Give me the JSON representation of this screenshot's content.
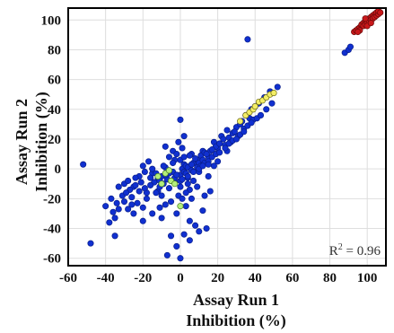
{
  "chart_data": {
    "type": "scatter",
    "title": "",
    "xlabel_lines": [
      "Assay Run 1",
      "Inhibition (%)"
    ],
    "ylabel_lines": [
      "Assay Run 2",
      "Inhibition (%)"
    ],
    "xlim": [
      -60,
      110
    ],
    "ylim": [
      -65,
      108
    ],
    "x_ticks": [
      -60,
      -40,
      -20,
      0,
      20,
      40,
      60,
      80,
      100
    ],
    "y_ticks": [
      -60,
      -40,
      -20,
      0,
      20,
      40,
      60,
      80,
      100
    ],
    "grid": true,
    "legend": "none",
    "annotation": {
      "text": "R",
      "sup": "2",
      "rest": " = 0.96",
      "placement": "bottom-right"
    },
    "series": [
      {
        "color": "#1030d0",
        "stroke": "#0a1e8a",
        "points": [
          [
            -52,
            3
          ],
          [
            -48,
            -50
          ],
          [
            -40,
            -25
          ],
          [
            -38,
            -36
          ],
          [
            -35,
            -33
          ],
          [
            -30,
            -10
          ],
          [
            -28,
            -8
          ],
          [
            -25,
            -12
          ],
          [
            -22,
            -5
          ],
          [
            -20,
            2
          ],
          [
            -18,
            -20
          ],
          [
            -15,
            -3
          ],
          [
            -12,
            -15
          ],
          [
            -10,
            -18
          ],
          [
            -8,
            1
          ],
          [
            -5,
            -22
          ],
          [
            -3,
            6
          ],
          [
            -2,
            -30
          ],
          [
            0,
            -8
          ],
          [
            2,
            3
          ],
          [
            4,
            -6
          ],
          [
            5,
            -14
          ],
          [
            6,
            10
          ],
          [
            8,
            5
          ],
          [
            10,
            -2
          ],
          [
            12,
            12
          ],
          [
            15,
            8
          ],
          [
            18,
            18
          ],
          [
            20,
            14
          ],
          [
            22,
            22
          ],
          [
            24,
            16
          ],
          [
            25,
            26
          ],
          [
            28,
            24
          ],
          [
            30,
            28
          ],
          [
            32,
            30
          ],
          [
            35,
            36
          ],
          [
            38,
            40
          ],
          [
            40,
            42
          ],
          [
            42,
            44
          ],
          [
            45,
            48
          ],
          [
            48,
            52
          ],
          [
            52,
            55
          ],
          [
            0,
            33
          ],
          [
            -8,
            15
          ],
          [
            5,
            -35
          ],
          [
            8,
            -38
          ],
          [
            10,
            -42
          ],
          [
            -5,
            -45
          ],
          [
            -2,
            -52
          ],
          [
            0,
            -60
          ],
          [
            5,
            -48
          ],
          [
            12,
            -28
          ],
          [
            -20,
            -35
          ],
          [
            -25,
            -30
          ],
          [
            -15,
            -30
          ],
          [
            3,
            -25
          ],
          [
            6,
            -20
          ],
          [
            -1,
            18
          ],
          [
            2,
            22
          ],
          [
            -6,
            8
          ],
          [
            -10,
            -5
          ],
          [
            -4,
            -2
          ],
          [
            1,
            0
          ],
          [
            3,
            2
          ],
          [
            7,
            4
          ],
          [
            9,
            6
          ],
          [
            11,
            9
          ],
          [
            13,
            11
          ],
          [
            16,
            12
          ],
          [
            19,
            15
          ],
          [
            21,
            17
          ],
          [
            -7,
            -7
          ],
          [
            -9,
            -10
          ],
          [
            -12,
            -6
          ],
          [
            -14,
            -9
          ],
          [
            -16,
            -11
          ],
          [
            -11,
            -12
          ],
          [
            -13,
            -16
          ],
          [
            -6,
            -13
          ],
          [
            -3,
            -9
          ],
          [
            0,
            -4
          ],
          [
            2,
            -2
          ],
          [
            4,
            1
          ],
          [
            6,
            3
          ],
          [
            8,
            7
          ],
          [
            10,
            4
          ],
          [
            12,
            6
          ],
          [
            14,
            10
          ],
          [
            17,
            13
          ],
          [
            23,
            20
          ],
          [
            26,
            21
          ],
          [
            29,
            25
          ],
          [
            33,
            32
          ],
          [
            37,
            34
          ],
          [
            36,
            87
          ],
          [
            88,
            78
          ],
          [
            90,
            80
          ],
          [
            91,
            82
          ],
          [
            -22,
            -15
          ],
          [
            -26,
            -19
          ],
          [
            -30,
            -22
          ],
          [
            -33,
            -27
          ],
          [
            -36,
            -29
          ],
          [
            -18,
            -16
          ],
          [
            15,
            -5
          ],
          [
            18,
            2
          ],
          [
            20,
            5
          ],
          [
            -17,
            5
          ],
          [
            -19,
            -2
          ],
          [
            -24,
            -6
          ],
          [
            -21,
            -9
          ],
          [
            -27,
            -14
          ],
          [
            -31,
            -18
          ],
          [
            -34,
            -23
          ],
          [
            -4,
            12
          ],
          [
            -2,
            10
          ],
          [
            1,
            14
          ],
          [
            4,
            -10
          ],
          [
            7,
            -8
          ],
          [
            9,
            -12
          ],
          [
            -1,
            -18
          ],
          [
            1,
            -20
          ],
          [
            3,
            -16
          ],
          [
            -8,
            -24
          ],
          [
            -11,
            -26
          ],
          [
            13,
            -18
          ],
          [
            16,
            -15
          ],
          [
            -4,
            4
          ],
          [
            0,
            6
          ],
          [
            2,
            8
          ],
          [
            5,
            9
          ],
          [
            -15,
            0
          ],
          [
            -20,
            -26
          ],
          [
            -23,
            -23
          ],
          [
            -28,
            -27
          ],
          [
            -35,
            -45
          ],
          [
            14,
            -40
          ],
          [
            -10,
            -33
          ],
          [
            2,
            -44
          ],
          [
            -7,
            -58
          ],
          [
            25,
            12
          ],
          [
            27,
            18
          ],
          [
            31,
            22
          ],
          [
            34,
            27
          ],
          [
            39,
            33
          ],
          [
            -9,
            2
          ],
          [
            -6,
            -3
          ],
          [
            -3,
            -6
          ],
          [
            0,
            -12
          ],
          [
            3,
            -3
          ],
          [
            6,
            -1
          ],
          [
            9,
            1
          ],
          [
            11,
            2
          ],
          [
            13,
            4
          ],
          [
            15,
            5
          ],
          [
            17,
            8
          ],
          [
            19,
            10
          ],
          [
            21,
            11
          ],
          [
            24,
            14
          ],
          [
            26,
            17
          ],
          [
            28,
            19
          ],
          [
            30,
            20
          ],
          [
            32,
            23
          ],
          [
            34,
            25
          ],
          [
            36,
            29
          ],
          [
            38,
            31
          ],
          [
            41,
            34
          ],
          [
            43,
            36
          ],
          [
            46,
            40
          ],
          [
            49,
            44
          ],
          [
            -37,
            -20
          ],
          [
            -33,
            -12
          ],
          [
            -29,
            -16
          ],
          [
            -26,
            -24
          ],
          [
            -24,
            -11
          ],
          [
            -19,
            -13
          ],
          [
            -16,
            -6
          ],
          [
            -13,
            -3
          ],
          [
            -11,
            -8
          ],
          [
            -8,
            -4
          ],
          [
            -5,
            -8
          ],
          [
            -2,
            -4
          ],
          [
            1,
            -7
          ],
          [
            4,
            -5
          ],
          [
            7,
            -2
          ],
          [
            10,
            0
          ],
          [
            12,
            2
          ],
          [
            15,
            3
          ]
        ]
      },
      {
        "color": "#f3ee66",
        "stroke": "#6b6a1a",
        "points": [
          [
            32,
            32
          ],
          [
            35,
            36
          ],
          [
            37,
            38
          ],
          [
            39,
            40
          ],
          [
            40,
            42
          ],
          [
            42,
            45
          ],
          [
            44,
            46
          ],
          [
            46,
            48
          ],
          [
            48,
            50
          ],
          [
            50,
            51
          ]
        ]
      },
      {
        "color": "#b4ee7a",
        "stroke": "#4a7d22",
        "points": [
          [
            -12,
            -5
          ],
          [
            -8,
            -3
          ],
          [
            -5,
            -8
          ],
          [
            -3,
            -10
          ],
          [
            0,
            -25
          ],
          [
            -10,
            -10
          ],
          [
            -6,
            -1
          ]
        ]
      },
      {
        "color": "#c8181a",
        "stroke": "#6a0a0a",
        "points": [
          [
            93,
            92
          ],
          [
            94,
            93
          ],
          [
            95,
            94
          ],
          [
            96,
            95
          ],
          [
            97,
            96
          ],
          [
            97,
            97
          ],
          [
            98,
            98
          ],
          [
            98,
            96
          ],
          [
            99,
            99
          ],
          [
            99,
            97
          ],
          [
            100,
            100
          ],
          [
            100,
            98
          ],
          [
            101,
            101
          ],
          [
            101,
            99
          ],
          [
            102,
            102
          ],
          [
            102,
            100
          ],
          [
            103,
            103
          ],
          [
            103,
            101
          ],
          [
            104,
            104
          ],
          [
            104,
            102
          ],
          [
            105,
            103
          ],
          [
            105,
            105
          ],
          [
            106,
            104
          ],
          [
            106,
            106
          ],
          [
            107,
            105
          ],
          [
            96,
            93
          ],
          [
            95,
            92
          ],
          [
            100,
            96
          ],
          [
            102,
            98
          ],
          [
            99,
            101
          ]
        ]
      }
    ]
  }
}
